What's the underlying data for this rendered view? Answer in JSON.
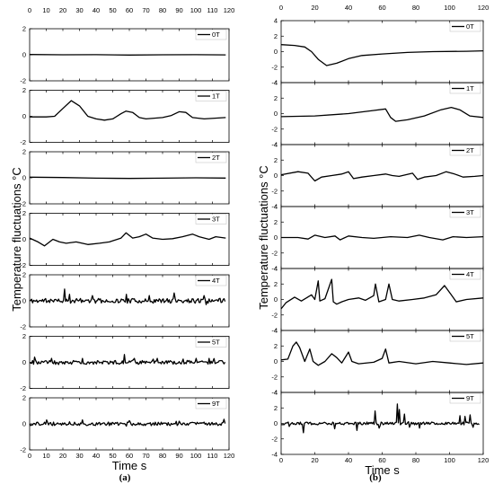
{
  "chart_data": [
    {
      "type": "line",
      "caption": "(a)",
      "ylabel": "Temperature fluctuations °C",
      "xlabel": "Time s",
      "x_ticks": [
        0,
        10,
        20,
        30,
        40,
        50,
        60,
        70,
        80,
        90,
        100,
        110,
        120
      ],
      "xlim": [
        0,
        120
      ],
      "subplots": [
        {
          "name": "0T",
          "ylim": [
            -2,
            2
          ],
          "y_ticks": [
            -2,
            0,
            2
          ],
          "series_type": "smooth",
          "points": [
            [
              0,
              0.02
            ],
            [
              20,
              0.0
            ],
            [
              40,
              0.01
            ],
            [
              60,
              -0.02
            ],
            [
              80,
              0.0
            ],
            [
              100,
              0.01
            ],
            [
              118,
              -0.01
            ]
          ]
        },
        {
          "name": "1T",
          "ylim": [
            -2,
            2
          ],
          "y_ticks": [
            -2,
            0,
            2
          ],
          "series_type": "smooth",
          "points": [
            [
              0,
              -0.05
            ],
            [
              10,
              -0.05
            ],
            [
              15,
              0.0
            ],
            [
              20,
              0.6
            ],
            [
              25,
              1.2
            ],
            [
              30,
              0.8
            ],
            [
              35,
              0.0
            ],
            [
              40,
              -0.2
            ],
            [
              45,
              -0.3
            ],
            [
              50,
              -0.2
            ],
            [
              55,
              0.2
            ],
            [
              58,
              0.4
            ],
            [
              62,
              0.3
            ],
            [
              66,
              -0.1
            ],
            [
              70,
              -0.2
            ],
            [
              80,
              -0.1
            ],
            [
              85,
              0.05
            ],
            [
              90,
              0.35
            ],
            [
              94,
              0.3
            ],
            [
              98,
              -0.1
            ],
            [
              105,
              -0.2
            ],
            [
              118,
              -0.1
            ]
          ]
        },
        {
          "name": "2T",
          "ylim": [
            -2,
            2
          ],
          "y_ticks": [
            -2,
            0,
            2
          ],
          "series_type": "smooth",
          "points": [
            [
              0,
              0.05
            ],
            [
              20,
              0.02
            ],
            [
              40,
              -0.03
            ],
            [
              60,
              -0.05
            ],
            [
              80,
              -0.03
            ],
            [
              100,
              0.0
            ],
            [
              118,
              -0.02
            ]
          ]
        },
        {
          "name": "3T",
          "ylim": [
            -2,
            2
          ],
          "y_ticks": [
            -2,
            0,
            2
          ],
          "series_type": "smooth",
          "points": [
            [
              0,
              0.1
            ],
            [
              5,
              -0.2
            ],
            [
              9,
              -0.5
            ],
            [
              14,
              0.0
            ],
            [
              18,
              -0.2
            ],
            [
              22,
              -0.3
            ],
            [
              28,
              -0.2
            ],
            [
              35,
              -0.4
            ],
            [
              42,
              -0.3
            ],
            [
              48,
              -0.2
            ],
            [
              55,
              0.1
            ],
            [
              58,
              0.5
            ],
            [
              62,
              0.1
            ],
            [
              66,
              0.2
            ],
            [
              70,
              0.4
            ],
            [
              74,
              0.1
            ],
            [
              80,
              0.0
            ],
            [
              86,
              0.05
            ],
            [
              92,
              0.2
            ],
            [
              98,
              0.4
            ],
            [
              102,
              0.2
            ],
            [
              108,
              0.0
            ],
            [
              112,
              0.2
            ],
            [
              118,
              0.1
            ]
          ]
        },
        {
          "name": "4T",
          "ylim": [
            -2,
            2
          ],
          "y_ticks": [
            -2,
            0,
            2
          ],
          "series_type": "noisy",
          "seed": 11,
          "base_amp": 0.3,
          "spikes": [
            [
              21,
              0.9
            ],
            [
              24,
              0.5
            ],
            [
              38,
              0.4
            ],
            [
              58,
              0.5
            ],
            [
              72,
              0.4
            ],
            [
              87,
              0.6
            ],
            [
              105,
              0.4
            ]
          ]
        },
        {
          "name": "5T",
          "ylim": [
            -2,
            2
          ],
          "y_ticks": [
            -2,
            0,
            2
          ],
          "series_type": "noisy",
          "seed": 23,
          "base_amp": 0.25,
          "spikes": [
            [
              3,
              0.4
            ],
            [
              13,
              0.3
            ],
            [
              32,
              0.3
            ],
            [
              57,
              0.6
            ],
            [
              63,
              0.3
            ],
            [
              77,
              0.3
            ],
            [
              100,
              0.3
            ],
            [
              108,
              0.3
            ]
          ]
        },
        {
          "name": "9T",
          "ylim": [
            -2,
            2
          ],
          "y_ticks": [
            -2,
            0,
            2
          ],
          "series_type": "noisy",
          "seed": 37,
          "base_amp": 0.22,
          "spikes": [
            [
              10,
              0.3
            ],
            [
              32,
              0.3
            ],
            [
              60,
              0.25
            ],
            [
              90,
              0.2
            ],
            [
              117,
              0.35
            ]
          ]
        }
      ]
    },
    {
      "type": "line",
      "caption": "(b)",
      "ylabel": "Temperature fluctuations °C",
      "xlabel": "Time s",
      "x_ticks": [
        0,
        20,
        40,
        60,
        80,
        100,
        120
      ],
      "xlim": [
        0,
        120
      ],
      "subplots": [
        {
          "name": "0T",
          "ylim": [
            -4,
            4
          ],
          "y_ticks": [
            -4,
            -2,
            0,
            2,
            4
          ],
          "series_type": "smooth",
          "points": [
            [
              0,
              0.9
            ],
            [
              8,
              0.8
            ],
            [
              14,
              0.6
            ],
            [
              18,
              0.0
            ],
            [
              22,
              -1.0
            ],
            [
              27,
              -1.8
            ],
            [
              33,
              -1.5
            ],
            [
              40,
              -0.9
            ],
            [
              48,
              -0.5
            ],
            [
              60,
              -0.3
            ],
            [
              75,
              -0.1
            ],
            [
              90,
              0.0
            ],
            [
              110,
              0.05
            ],
            [
              120,
              0.1
            ]
          ]
        },
        {
          "name": "1T",
          "ylim": [
            -4,
            4
          ],
          "y_ticks": [
            -4,
            -2,
            0,
            2,
            4
          ],
          "series_type": "smooth",
          "points": [
            [
              0,
              -0.4
            ],
            [
              20,
              -0.3
            ],
            [
              40,
              0.0
            ],
            [
              55,
              0.4
            ],
            [
              62,
              0.6
            ],
            [
              65,
              -0.5
            ],
            [
              68,
              -1.0
            ],
            [
              75,
              -0.8
            ],
            [
              85,
              -0.3
            ],
            [
              95,
              0.5
            ],
            [
              101,
              0.8
            ],
            [
              106,
              0.5
            ],
            [
              112,
              -0.3
            ],
            [
              120,
              -0.5
            ]
          ]
        },
        {
          "name": "2T",
          "ylim": [
            -4,
            4
          ],
          "y_ticks": [
            -4,
            -2,
            0,
            2,
            4
          ],
          "series_type": "smooth",
          "points": [
            [
              0,
              0.1
            ],
            [
              10,
              0.5
            ],
            [
              16,
              0.3
            ],
            [
              20,
              -0.7
            ],
            [
              24,
              -0.2
            ],
            [
              30,
              0.0
            ],
            [
              36,
              0.2
            ],
            [
              40,
              0.5
            ],
            [
              43,
              -0.4
            ],
            [
              48,
              -0.2
            ],
            [
              55,
              0.0
            ],
            [
              62,
              0.2
            ],
            [
              66,
              0.0
            ],
            [
              70,
              -0.1
            ],
            [
              78,
              0.3
            ],
            [
              81,
              -0.5
            ],
            [
              85,
              -0.2
            ],
            [
              92,
              0.0
            ],
            [
              98,
              0.5
            ],
            [
              103,
              0.2
            ],
            [
              108,
              -0.2
            ],
            [
              115,
              -0.1
            ],
            [
              120,
              0.0
            ]
          ]
        },
        {
          "name": "3T",
          "ylim": [
            -4,
            4
          ],
          "y_ticks": [
            -4,
            -2,
            0,
            2,
            4
          ],
          "series_type": "smooth",
          "points": [
            [
              0,
              0.0
            ],
            [
              10,
              0.0
            ],
            [
              16,
              -0.2
            ],
            [
              20,
              0.3
            ],
            [
              26,
              0.0
            ],
            [
              32,
              0.2
            ],
            [
              35,
              -0.3
            ],
            [
              40,
              0.2
            ],
            [
              48,
              0.0
            ],
            [
              55,
              -0.1
            ],
            [
              65,
              0.1
            ],
            [
              75,
              0.0
            ],
            [
              82,
              0.3
            ],
            [
              88,
              0.0
            ],
            [
              96,
              -0.3
            ],
            [
              102,
              0.1
            ],
            [
              110,
              0.0
            ],
            [
              120,
              0.1
            ]
          ]
        },
        {
          "name": "4T",
          "ylim": [
            -4,
            4
          ],
          "y_ticks": [
            -4,
            -2,
            0,
            2,
            4
          ],
          "series_type": "smooth",
          "points": [
            [
              0,
              -1.2
            ],
            [
              3,
              -0.4
            ],
            [
              8,
              0.3
            ],
            [
              12,
              -0.2
            ],
            [
              15,
              0.2
            ],
            [
              18,
              0.6
            ],
            [
              20,
              0.0
            ],
            [
              22,
              2.4
            ],
            [
              23,
              -0.2
            ],
            [
              26,
              0.1
            ],
            [
              30,
              2.6
            ],
            [
              31,
              -0.3
            ],
            [
              33,
              -0.6
            ],
            [
              36,
              -0.3
            ],
            [
              40,
              0.0
            ],
            [
              46,
              0.2
            ],
            [
              50,
              -0.1
            ],
            [
              55,
              0.5
            ],
            [
              56,
              2.0
            ],
            [
              58,
              -0.3
            ],
            [
              62,
              0.0
            ],
            [
              64,
              2.0
            ],
            [
              66,
              0.0
            ],
            [
              70,
              -0.2
            ],
            [
              78,
              0.0
            ],
            [
              85,
              0.2
            ],
            [
              92,
              0.6
            ],
            [
              97,
              1.8
            ],
            [
              101,
              0.6
            ],
            [
              104,
              -0.3
            ],
            [
              110,
              0.0
            ],
            [
              120,
              0.2
            ]
          ]
        },
        {
          "name": "5T",
          "ylim": [
            -4,
            4
          ],
          "y_ticks": [
            -4,
            -2,
            0,
            2,
            4
          ],
          "series_type": "smooth",
          "points": [
            [
              0,
              0.2
            ],
            [
              4,
              0.3
            ],
            [
              7,
              2.0
            ],
            [
              9,
              2.5
            ],
            [
              11,
              1.8
            ],
            [
              14,
              0.0
            ],
            [
              17,
              1.6
            ],
            [
              19,
              0.0
            ],
            [
              22,
              -0.5
            ],
            [
              26,
              0.0
            ],
            [
              30,
              1.0
            ],
            [
              33,
              0.5
            ],
            [
              36,
              -0.2
            ],
            [
              40,
              1.2
            ],
            [
              42,
              0.0
            ],
            [
              46,
              -0.3
            ],
            [
              55,
              -0.1
            ],
            [
              60,
              0.4
            ],
            [
              62,
              1.6
            ],
            [
              64,
              -0.2
            ],
            [
              70,
              0.0
            ],
            [
              80,
              -0.3
            ],
            [
              90,
              0.0
            ],
            [
              100,
              -0.2
            ],
            [
              110,
              -0.4
            ],
            [
              120,
              -0.2
            ]
          ]
        },
        {
          "name": "9T",
          "ylim": [
            -4,
            4
          ],
          "y_ticks": [
            -4,
            -2,
            0,
            2,
            4
          ],
          "series_type": "noisy",
          "seed": 53,
          "base_amp": 0.3,
          "spikes": [
            [
              5,
              -0.4
            ],
            [
              13,
              -1.2
            ],
            [
              32,
              -0.7
            ],
            [
              45,
              -0.9
            ],
            [
              56,
              1.6
            ],
            [
              58,
              -0.6
            ],
            [
              69,
              2.5
            ],
            [
              70,
              1.8
            ],
            [
              73,
              1.2
            ],
            [
              76,
              -0.5
            ],
            [
              82,
              -0.6
            ],
            [
              106,
              1.0
            ],
            [
              109,
              0.9
            ],
            [
              112,
              1.1
            ],
            [
              114,
              -0.5
            ]
          ]
        }
      ]
    }
  ]
}
